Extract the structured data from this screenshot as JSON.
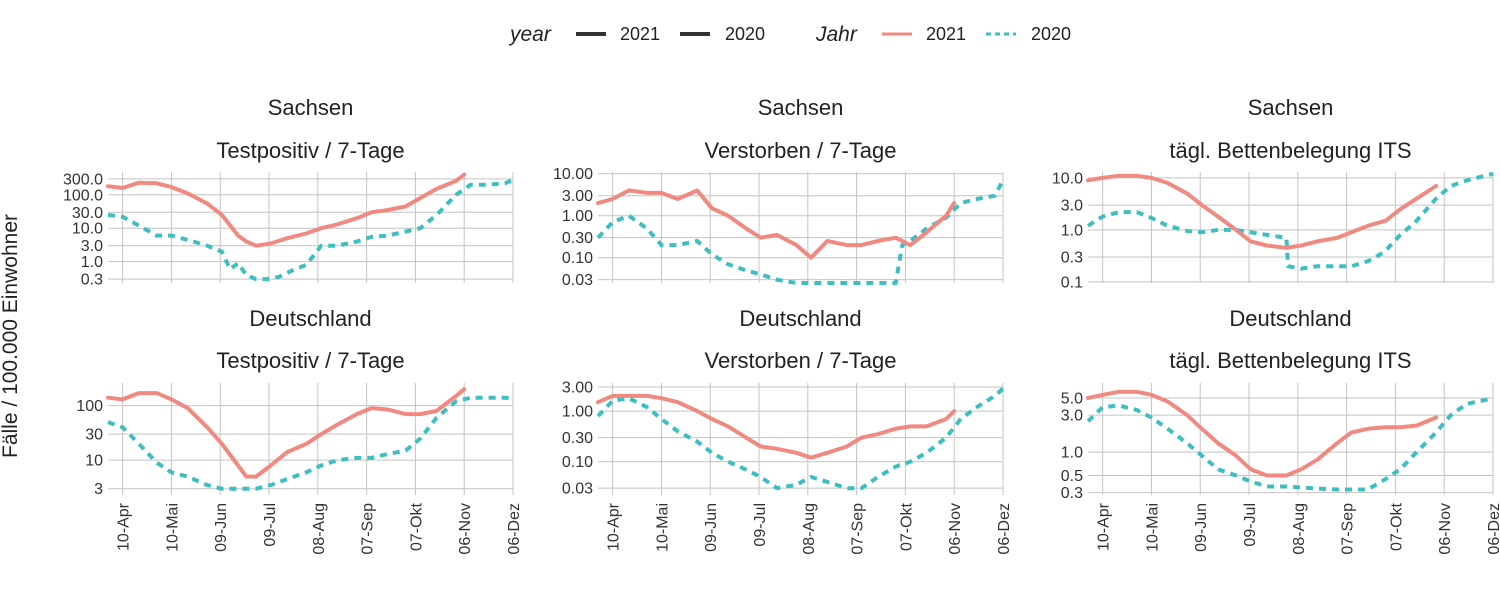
{
  "legend": {
    "group1": {
      "title": "year",
      "items": [
        "2021",
        "2020"
      ]
    },
    "group2": {
      "title": "Jahr",
      "items": [
        "2021",
        "2020"
      ]
    }
  },
  "colors": {
    "2021": "#F08A80",
    "2020": "#3DBFC2",
    "legend_dark": "#333333"
  },
  "chart_data": {
    "type": "line",
    "shared_ylabel": "Fälle / 100.000 Einwohner",
    "x_axis": {
      "type": "date",
      "tick_labels": [
        "10-Apr",
        "10-Mai",
        "09-Jun",
        "09-Jul",
        "08-Aug",
        "07-Sep",
        "07-Okt",
        "06-Nov",
        "06-Dez"
      ],
      "tick_dates": [
        "04-10",
        "05-10",
        "06-09",
        "07-09",
        "08-08",
        "09-07",
        "10-07",
        "11-06",
        "12-06"
      ],
      "range": [
        "04-01",
        "12-06"
      ]
    },
    "panels": [
      {
        "id": "sachsen-testpositiv",
        "region": "Sachsen",
        "metric": "Testpositiv / 7-Tage",
        "yscale": "log",
        "ylim": [
          0.23,
          480
        ],
        "yticks": [
          0.3,
          1,
          3,
          10,
          30,
          100,
          300
        ],
        "ytick_labels": [
          "0.3",
          "1.0",
          "3.0",
          "10.0",
          "30.0",
          "100.0",
          "300.0"
        ],
        "series": [
          {
            "name": "2021",
            "dates": [
              "04-01",
              "04-10",
              "04-20",
              "05-01",
              "05-10",
              "05-20",
              "06-01",
              "06-10",
              "06-20",
              "06-25",
              "07-01",
              "07-10",
              "07-20",
              "08-01",
              "08-10",
              "08-20",
              "09-01",
              "09-10",
              "09-20",
              "10-01",
              "10-10",
              "10-20",
              "11-01",
              "11-06"
            ],
            "values": [
              180,
              160,
              230,
              220,
              170,
              110,
              55,
              25,
              6,
              4,
              3,
              3.5,
              5,
              7,
              10,
              13,
              20,
              30,
              35,
              45,
              80,
              150,
              260,
              400
            ]
          },
          {
            "name": "2020",
            "dates": [
              "04-01",
              "04-10",
              "04-20",
              "05-01",
              "05-10",
              "05-20",
              "06-01",
              "06-10",
              "06-15",
              "06-20",
              "06-25",
              "07-01",
              "07-08",
              "07-15",
              "07-25",
              "08-01",
              "08-10",
              "08-20",
              "09-01",
              "09-10",
              "09-20",
              "10-01",
              "10-10",
              "10-20",
              "11-01",
              "11-10",
              "11-20",
              "12-01",
              "12-06"
            ],
            "values": [
              25,
              22,
              12,
              6,
              6,
              4.5,
              3,
              2,
              0.6,
              0.9,
              0.4,
              0.3,
              0.3,
              0.35,
              0.6,
              0.8,
              3,
              3,
              4,
              5.5,
              6,
              8,
              10,
              25,
              100,
              200,
              200,
              220,
              280
            ]
          }
        ]
      },
      {
        "id": "sachsen-verstorben",
        "region": "Sachsen",
        "metric": "Verstorben / 7-Tage",
        "yscale": "log",
        "ylim": [
          0.025,
          11
        ],
        "yticks": [
          0.03,
          0.1,
          0.3,
          1,
          3,
          10
        ],
        "ytick_labels": [
          "0.03",
          "0.10",
          "0.30",
          "1.00",
          "3.00",
          "10.00"
        ],
        "series": [
          {
            "name": "2021",
            "dates": [
              "04-01",
              "04-10",
              "04-20",
              "05-01",
              "05-10",
              "05-20",
              "06-01",
              "06-10",
              "06-20",
              "07-01",
              "07-10",
              "07-20",
              "08-01",
              "08-10",
              "08-20",
              "09-01",
              "09-10",
              "09-20",
              "10-01",
              "10-10",
              "10-20",
              "11-01",
              "11-06"
            ],
            "values": [
              2,
              2.5,
              4,
              3.5,
              3.5,
              2.5,
              4,
              1.5,
              1,
              0.5,
              0.3,
              0.35,
              0.2,
              0.1,
              0.25,
              0.2,
              0.2,
              0.25,
              0.3,
              0.2,
              0.4,
              1,
              2
            ]
          },
          {
            "name": "2020",
            "dates": [
              "04-01",
              "04-10",
              "04-20",
              "05-01",
              "05-10",
              "05-20",
              "06-01",
              "06-10",
              "06-20",
              "07-01",
              "07-10",
              "07-20",
              "08-01",
              "08-15",
              "09-01",
              "09-15",
              "10-01",
              "10-05",
              "10-10",
              "10-20",
              "11-01",
              "11-10",
              "11-20",
              "12-01",
              "12-06"
            ],
            "values": [
              0.3,
              0.7,
              1,
              0.5,
              0.2,
              0.2,
              0.25,
              0.12,
              0.07,
              0.05,
              0.04,
              0.03,
              0.025,
              0.025,
              0.025,
              0.025,
              0.025,
              0.2,
              0.25,
              0.5,
              0.9,
              2,
              2.5,
              3,
              7
            ]
          }
        ]
      },
      {
        "id": "sachsen-its",
        "region": "Sachsen",
        "metric": "tägl. Bettenbelegung ITS",
        "yscale": "log",
        "ylim": [
          0.095,
          13
        ],
        "yticks": [
          0.1,
          0.3,
          1,
          3,
          10
        ],
        "ytick_labels": [
          "0.1",
          "0.3",
          "1.0",
          "3.0",
          "10.0"
        ],
        "series": [
          {
            "name": "2021",
            "dates": [
              "04-01",
              "04-10",
              "04-20",
              "05-01",
              "05-10",
              "05-20",
              "06-01",
              "06-10",
              "06-20",
              "07-01",
              "07-10",
              "07-20",
              "08-01",
              "08-10",
              "08-20",
              "09-01",
              "09-10",
              "09-20",
              "10-01",
              "10-10",
              "10-20",
              "11-01"
            ],
            "values": [
              9,
              10,
              11,
              11,
              10,
              8,
              5,
              3,
              1.8,
              1,
              0.6,
              0.5,
              0.45,
              0.5,
              0.6,
              0.7,
              0.9,
              1.2,
              1.5,
              2.5,
              4,
              7
            ]
          },
          {
            "name": "2020",
            "dates": [
              "04-01",
              "04-10",
              "04-20",
              "05-01",
              "05-10",
              "05-20",
              "06-01",
              "06-10",
              "06-20",
              "07-01",
              "07-10",
              "07-20",
              "08-01",
              "08-02",
              "08-10",
              "08-20",
              "09-01",
              "09-10",
              "09-20",
              "09-25",
              "10-01",
              "10-10",
              "10-20",
              "11-01",
              "11-10",
              "11-20",
              "12-01",
              "12-06"
            ],
            "values": [
              1.2,
              1.8,
              2.2,
              2.2,
              1.7,
              1.2,
              0.95,
              0.9,
              1,
              1,
              0.9,
              0.8,
              0.7,
              0.2,
              0.18,
              0.2,
              0.2,
              0.2,
              0.25,
              0.3,
              0.4,
              0.8,
              1.5,
              4,
              7,
              9,
              11,
              12
            ]
          }
        ]
      },
      {
        "id": "deutschland-testpositiv",
        "region": "Deutschland",
        "metric": "Testpositiv / 7-Tage",
        "yscale": "log",
        "ylim": [
          2.3,
          260
        ],
        "yticks": [
          3,
          10,
          30,
          100
        ],
        "ytick_labels": [
          "3",
          "10",
          "30",
          "100"
        ],
        "series": [
          {
            "name": "2021",
            "dates": [
              "04-01",
              "04-10",
              "04-20",
              "05-01",
              "05-10",
              "05-20",
              "06-01",
              "06-10",
              "06-20",
              "06-25",
              "07-01",
              "07-10",
              "07-20",
              "08-01",
              "08-10",
              "08-20",
              "09-01",
              "09-10",
              "09-20",
              "10-01",
              "10-10",
              "10-20",
              "11-01",
              "11-06"
            ],
            "values": [
              140,
              130,
              170,
              170,
              130,
              90,
              40,
              20,
              8,
              5,
              5,
              8,
              14,
              20,
              30,
              45,
              70,
              90,
              85,
              70,
              70,
              80,
              150,
              200
            ]
          },
          {
            "name": "2020",
            "dates": [
              "04-01",
              "04-10",
              "04-20",
              "05-01",
              "05-10",
              "05-20",
              "06-01",
              "06-10",
              "06-20",
              "06-25",
              "07-01",
              "07-10",
              "07-20",
              "08-01",
              "08-10",
              "08-20",
              "09-01",
              "09-10",
              "09-20",
              "10-01",
              "10-10",
              "10-20",
              "11-01",
              "11-10",
              "11-20",
              "12-01",
              "12-06"
            ],
            "values": [
              50,
              40,
              20,
              9,
              6,
              5,
              3.5,
              3,
              3,
              3,
              3,
              3.5,
              4.5,
              6,
              8,
              10,
              11,
              11,
              13,
              15,
              25,
              60,
              120,
              140,
              140,
              140,
              135
            ]
          }
        ]
      },
      {
        "id": "deutschland-verstorben",
        "region": "Deutschland",
        "metric": "Verstorben / 7-Tage",
        "yscale": "log",
        "ylim": [
          0.022,
          3.6
        ],
        "yticks": [
          0.03,
          0.1,
          0.3,
          1,
          3
        ],
        "ytick_labels": [
          "0.03",
          "0.10",
          "0.30",
          "1.00",
          "3.00"
        ],
        "series": [
          {
            "name": "2021",
            "dates": [
              "04-01",
              "04-10",
              "04-20",
              "05-01",
              "05-10",
              "05-20",
              "06-01",
              "06-10",
              "06-20",
              "07-01",
              "07-10",
              "07-20",
              "08-01",
              "08-10",
              "08-20",
              "09-01",
              "09-10",
              "09-20",
              "10-01",
              "10-10",
              "10-20",
              "11-01",
              "11-06"
            ],
            "values": [
              1.5,
              2,
              2,
              2,
              1.8,
              1.5,
              1,
              0.7,
              0.5,
              0.3,
              0.2,
              0.18,
              0.15,
              0.12,
              0.15,
              0.2,
              0.3,
              0.35,
              0.45,
              0.5,
              0.5,
              0.7,
              1
            ]
          },
          {
            "name": "2020",
            "dates": [
              "04-01",
              "04-10",
              "04-20",
              "05-01",
              "05-10",
              "05-20",
              "06-01",
              "06-10",
              "06-20",
              "07-01",
              "07-10",
              "07-20",
              "08-01",
              "08-10",
              "08-20",
              "09-01",
              "09-10",
              "09-20",
              "10-01",
              "10-10",
              "10-20",
              "11-01",
              "11-10",
              "11-20",
              "12-01",
              "12-06"
            ],
            "values": [
              0.8,
              1.6,
              1.8,
              1.2,
              0.7,
              0.4,
              0.25,
              0.15,
              0.1,
              0.07,
              0.05,
              0.03,
              0.035,
              0.05,
              0.04,
              0.03,
              0.03,
              0.05,
              0.08,
              0.1,
              0.15,
              0.3,
              0.7,
              1.2,
              2,
              2.8
            ]
          }
        ]
      },
      {
        "id": "deutschland-its",
        "region": "Deutschland",
        "metric": "tägl. Bettenbelegung ITS",
        "yscale": "log",
        "ylim": [
          0.28,
          7.8
        ],
        "yticks": [
          0.3,
          0.5,
          1,
          3,
          5
        ],
        "ytick_labels": [
          "0.3",
          "0.5",
          "1.0",
          "3.0",
          "5.0"
        ],
        "series": [
          {
            "name": "2021",
            "dates": [
              "04-01",
              "04-10",
              "04-20",
              "05-01",
              "05-10",
              "05-20",
              "06-01",
              "06-10",
              "06-20",
              "07-01",
              "07-10",
              "07-20",
              "08-01",
              "08-10",
              "08-20",
              "09-01",
              "09-10",
              "09-20",
              "10-01",
              "10-10",
              "10-20",
              "11-01"
            ],
            "values": [
              5,
              5.5,
              6,
              6,
              5.5,
              4.5,
              3,
              2,
              1.3,
              0.9,
              0.6,
              0.5,
              0.5,
              0.6,
              0.8,
              1.3,
              1.8,
              2,
              2.1,
              2.1,
              2.2,
              2.8
            ]
          },
          {
            "name": "2020",
            "dates": [
              "04-01",
              "04-10",
              "04-20",
              "05-01",
              "05-10",
              "05-20",
              "06-01",
              "06-10",
              "06-20",
              "07-01",
              "07-10",
              "07-20",
              "08-01",
              "08-10",
              "08-20",
              "09-01",
              "09-10",
              "09-20",
              "10-01",
              "10-10",
              "10-20",
              "11-01",
              "11-10",
              "11-20",
              "12-01",
              "12-06"
            ],
            "values": [
              2.5,
              3.8,
              4,
              3.5,
              2.8,
              2,
              1.3,
              0.9,
              0.6,
              0.5,
              0.42,
              0.36,
              0.36,
              0.35,
              0.34,
              0.33,
              0.33,
              0.33,
              0.45,
              0.6,
              1,
              1.8,
              3,
              4.2,
              4.7,
              5
            ]
          }
        ]
      }
    ]
  }
}
